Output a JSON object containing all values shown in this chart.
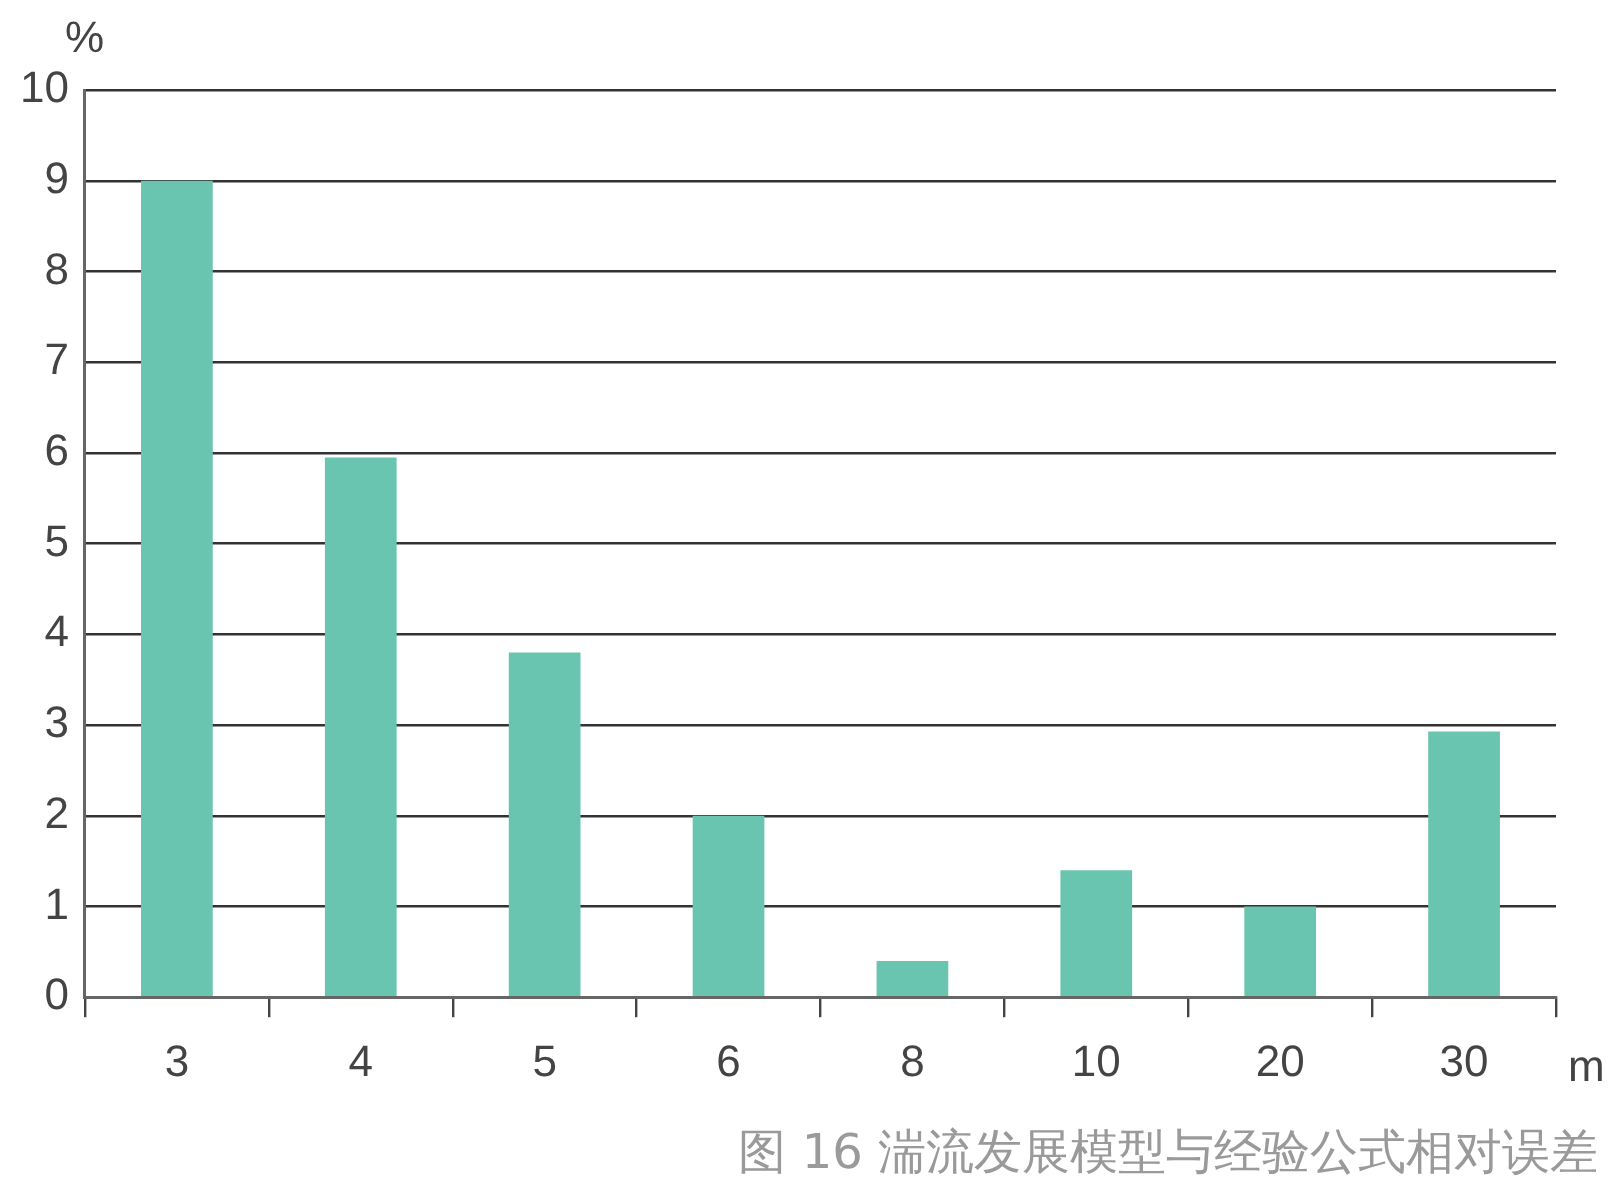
{
  "chart_data": {
    "type": "bar",
    "categories": [
      "3",
      "4",
      "5",
      "6",
      "8",
      "10",
      "20",
      "30"
    ],
    "values": [
      9.0,
      5.95,
      3.8,
      2.0,
      0.4,
      1.4,
      1.0,
      2.93
    ],
    "color": "#69c5b0",
    "xlabel": "m",
    "ylabel": "%",
    "ylim": [
      0,
      10
    ],
    "yticks": [
      0,
      1,
      2,
      3,
      4,
      5,
      6,
      7,
      8,
      9,
      10
    ],
    "grid": "y",
    "legend": false,
    "annotations": [
      "图 16 湍流发展模型与经验公式相对误差"
    ]
  }
}
